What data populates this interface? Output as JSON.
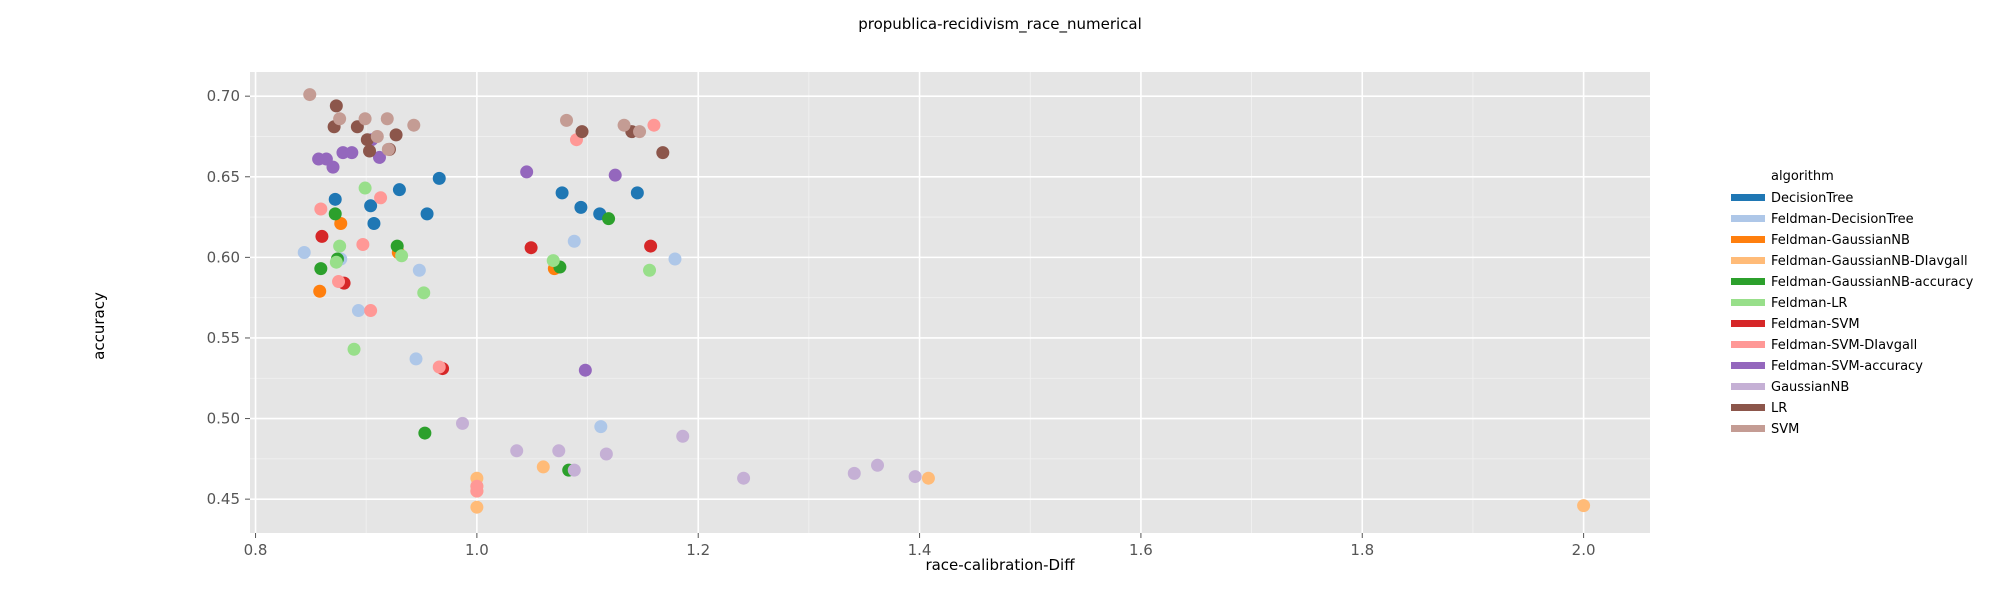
{
  "chart_data": {
    "type": "scatter",
    "title": "propublica-recidivism_race_numerical",
    "xlabel": "race-calibration-Diff",
    "ylabel": "accuracy",
    "xlim": [
      0.795,
      2.06
    ],
    "ylim": [
      0.429,
      0.715
    ],
    "xticks": [
      0.8,
      1.0,
      1.2,
      1.4,
      1.6,
      1.8,
      2.0
    ],
    "yticks": [
      0.45,
      0.5,
      0.55,
      0.6,
      0.65,
      0.7
    ],
    "xtick_labels": [
      "0.8",
      "1.0",
      "1.2",
      "1.4",
      "1.6",
      "1.8",
      "2.0"
    ],
    "ytick_labels": [
      "0.45",
      "0.50",
      "0.55",
      "0.60",
      "0.65",
      "0.70"
    ],
    "grid": true,
    "legend_title": "algorithm",
    "legend_position": "right",
    "series": [
      {
        "name": "DecisionTree",
        "color": "#1f77b4",
        "points": [
          [
            0.872,
            0.636
          ],
          [
            0.904,
            0.632
          ],
          [
            0.907,
            0.621
          ],
          [
            0.93,
            0.642
          ],
          [
            0.955,
            0.627
          ],
          [
            0.966,
            0.649
          ],
          [
            1.077,
            0.64
          ],
          [
            1.094,
            0.631
          ],
          [
            1.111,
            0.627
          ],
          [
            1.145,
            0.64
          ]
        ]
      },
      {
        "name": "Feldman-DecisionTree",
        "color": "#aec7e8",
        "points": [
          [
            0.844,
            0.603
          ],
          [
            0.877,
            0.599
          ],
          [
            0.893,
            0.567
          ],
          [
            0.945,
            0.537
          ],
          [
            0.948,
            0.592
          ],
          [
            1.088,
            0.61
          ],
          [
            1.112,
            0.495
          ],
          [
            1.179,
            0.599
          ]
        ]
      },
      {
        "name": "Feldman-GaussianNB",
        "color": "#ff7f0e",
        "points": [
          [
            0.858,
            0.579
          ],
          [
            0.877,
            0.621
          ],
          [
            0.929,
            0.603
          ],
          [
            1.07,
            0.593
          ]
        ]
      },
      {
        "name": "Feldman-GaussianNB-DIavgall",
        "color": "#ffbb78",
        "points": [
          [
            1.0,
            0.463
          ],
          [
            1.0,
            0.458
          ],
          [
            1.0,
            0.455
          ],
          [
            1.0,
            0.445
          ],
          [
            1.06,
            0.47
          ],
          [
            1.408,
            0.463
          ],
          [
            2.0,
            0.446
          ]
        ]
      },
      {
        "name": "Feldman-GaussianNB-accuracy",
        "color": "#2ca02c",
        "points": [
          [
            0.859,
            0.593
          ],
          [
            0.872,
            0.627
          ],
          [
            0.874,
            0.599
          ],
          [
            0.928,
            0.607
          ],
          [
            0.953,
            0.491
          ],
          [
            1.075,
            0.594
          ],
          [
            1.083,
            0.468
          ],
          [
            1.119,
            0.624
          ]
        ]
      },
      {
        "name": "Feldman-LR",
        "color": "#98df8a",
        "points": [
          [
            0.873,
            0.597
          ],
          [
            0.876,
            0.607
          ],
          [
            0.889,
            0.543
          ],
          [
            0.899,
            0.643
          ],
          [
            0.932,
            0.601
          ],
          [
            0.952,
            0.578
          ],
          [
            1.069,
            0.598
          ],
          [
            1.156,
            0.592
          ]
        ]
      },
      {
        "name": "Feldman-SVM",
        "color": "#d62728",
        "points": [
          [
            0.86,
            0.613
          ],
          [
            0.88,
            0.584
          ],
          [
            0.969,
            0.531
          ],
          [
            1.049,
            0.606
          ],
          [
            1.157,
            0.607
          ]
        ]
      },
      {
        "name": "Feldman-SVM-DIavgall",
        "color": "#ff9896",
        "points": [
          [
            0.859,
            0.63
          ],
          [
            0.875,
            0.585
          ],
          [
            0.897,
            0.608
          ],
          [
            0.904,
            0.567
          ],
          [
            0.913,
            0.637
          ],
          [
            0.966,
            0.532
          ],
          [
            1.0,
            0.458
          ],
          [
            1.0,
            0.455
          ],
          [
            1.09,
            0.673
          ],
          [
            1.16,
            0.682
          ]
        ]
      },
      {
        "name": "Feldman-SVM-accuracy",
        "color": "#9467bd",
        "points": [
          [
            0.857,
            0.661
          ],
          [
            0.864,
            0.661
          ],
          [
            0.87,
            0.656
          ],
          [
            0.879,
            0.665
          ],
          [
            0.887,
            0.665
          ],
          [
            0.905,
            0.673
          ],
          [
            0.912,
            0.662
          ],
          [
            1.045,
            0.653
          ],
          [
            1.098,
            0.53
          ],
          [
            1.125,
            0.651
          ]
        ]
      },
      {
        "name": "GaussianNB",
        "color": "#c5b0d5",
        "points": [
          [
            0.987,
            0.497
          ],
          [
            1.036,
            0.48
          ],
          [
            1.074,
            0.48
          ],
          [
            1.088,
            0.468
          ],
          [
            1.117,
            0.478
          ],
          [
            1.186,
            0.489
          ],
          [
            1.241,
            0.463
          ],
          [
            1.341,
            0.466
          ],
          [
            1.362,
            0.471
          ],
          [
            1.396,
            0.464
          ]
        ]
      },
      {
        "name": "LR",
        "color": "#8c564b",
        "points": [
          [
            0.871,
            0.681
          ],
          [
            0.873,
            0.694
          ],
          [
            0.892,
            0.681
          ],
          [
            0.901,
            0.673
          ],
          [
            0.903,
            0.666
          ],
          [
            0.921,
            0.667
          ],
          [
            0.927,
            0.676
          ],
          [
            1.095,
            0.678
          ],
          [
            1.14,
            0.678
          ],
          [
            1.168,
            0.665
          ]
        ]
      },
      {
        "name": "SVM",
        "color": "#c49c94",
        "points": [
          [
            0.849,
            0.701
          ],
          [
            0.876,
            0.686
          ],
          [
            0.899,
            0.686
          ],
          [
            0.91,
            0.675
          ],
          [
            0.919,
            0.686
          ],
          [
            0.92,
            0.667
          ],
          [
            0.943,
            0.682
          ],
          [
            1.081,
            0.685
          ],
          [
            1.133,
            0.682
          ],
          [
            1.147,
            0.678
          ]
        ]
      }
    ]
  }
}
